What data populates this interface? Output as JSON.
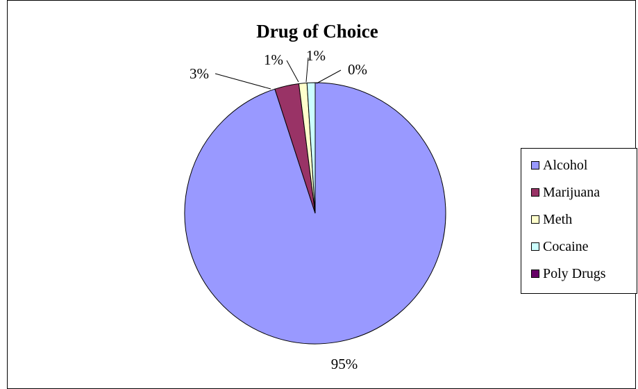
{
  "chart_data": {
    "type": "pie",
    "title": "Drug of Choice",
    "categories": [
      "Alcohol",
      "Marijuana",
      "Meth",
      "Cocaine",
      "Poly Drugs"
    ],
    "values": [
      95,
      3,
      1,
      1,
      0
    ],
    "data_labels": [
      "95%",
      "3%",
      "1%",
      "1%",
      "0%"
    ],
    "colors": [
      "#9999ff",
      "#993366",
      "#ffffcc",
      "#ccffff",
      "#660066"
    ],
    "legend_position": "right"
  }
}
